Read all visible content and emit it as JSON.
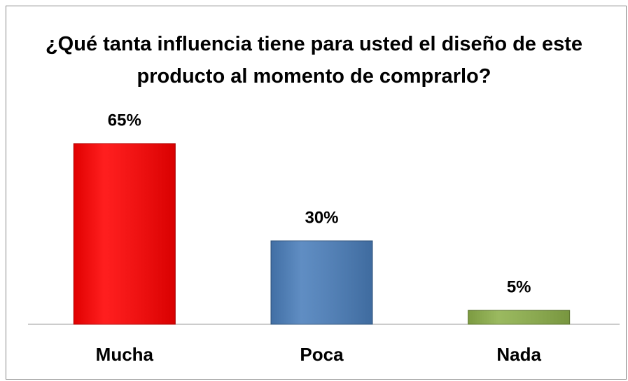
{
  "chart_data": {
    "type": "bar",
    "title": "¿Qué tanta influencia tiene para usted el diseño de este producto al momento de comprarlo?",
    "categories": [
      "Mucha",
      "Poca",
      "Nada"
    ],
    "values": [
      65,
      30,
      5
    ],
    "value_labels": [
      "65%",
      "30%",
      "5%"
    ],
    "colors": [
      "#ff0000",
      "#4a7ebb",
      "#8db04a"
    ]
  }
}
